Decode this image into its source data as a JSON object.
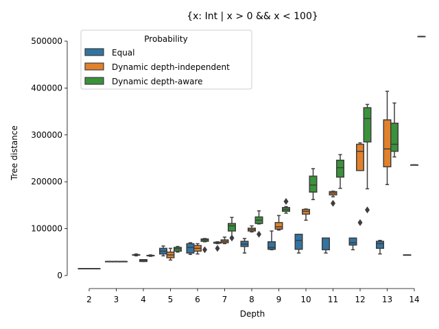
{
  "chart_data": {
    "type": "box",
    "title": "{x: Int | x > 0 && x < 100}",
    "xlabel": "Depth",
    "ylabel": "Tree distance",
    "categories": [
      "2",
      "3",
      "4",
      "5",
      "6",
      "7",
      "8",
      "9",
      "10",
      "11",
      "12",
      "13",
      "14"
    ],
    "ylim": [
      0,
      500000
    ],
    "yticks": [
      0,
      100000,
      200000,
      300000,
      400000,
      500000
    ],
    "ytick_labels": [
      "0",
      "100000",
      "200000",
      "300000",
      "400000",
      "500000"
    ],
    "grid": false,
    "legend": {
      "title": "Probability",
      "placement": "top-left"
    },
    "series": [
      {
        "name": "Equal",
        "color": "#3274a1",
        "boxes": [
          {
            "cat": "2",
            "whislo": 15000,
            "q1": 15000,
            "med": 15000,
            "q3": 15000,
            "whishi": 15000
          },
          {
            "cat": "3",
            "whislo": 30000,
            "q1": 30000,
            "med": 30000,
            "q3": 30000,
            "whishi": 30000
          },
          {
            "cat": "4",
            "whislo": 42000,
            "q1": 43500,
            "med": 44000,
            "q3": 44500,
            "whishi": 46000
          },
          {
            "cat": "5",
            "whislo": 42000,
            "q1": 46000,
            "med": 52000,
            "q3": 58000,
            "whishi": 63000
          },
          {
            "cat": "6",
            "whislo": 45000,
            "q1": 48000,
            "med": 60000,
            "q3": 68000,
            "whishi": 70000
          },
          {
            "cat": "7",
            "whislo": 68000,
            "q1": 69000,
            "med": 70000,
            "q3": 71000,
            "whishi": 72000
          },
          {
            "cat": "8",
            "whislo": 48000,
            "q1": 62000,
            "med": 67000,
            "q3": 73000,
            "whishi": 79000
          },
          {
            "cat": "9",
            "whislo": 55000,
            "q1": 56000,
            "med": 60000,
            "q3": 72000,
            "whishi": 95000
          },
          {
            "cat": "10",
            "whislo": 48000,
            "q1": 56000,
            "med": 75000,
            "q3": 88000,
            "whishi": 88000
          },
          {
            "cat": "11",
            "whislo": 48000,
            "q1": 55000,
            "med": 80000,
            "q3": 80000,
            "whishi": 80000
          },
          {
            "cat": "12",
            "whislo": 55000,
            "q1": 65000,
            "med": 70000,
            "q3": 80000,
            "whishi": 80000
          },
          {
            "cat": "13",
            "whislo": 46000,
            "q1": 58000,
            "med": 68000,
            "q3": 73000,
            "whishi": 75000
          },
          {
            "cat": "14",
            "whislo": 44000,
            "q1": 44000,
            "med": 44000,
            "q3": 44000,
            "whishi": 44000
          }
        ],
        "outliers": []
      },
      {
        "name": "Dynamic depth-independent",
        "color": "#e1812c",
        "boxes": [
          {
            "cat": "2",
            "whislo": 15000,
            "q1": 15000,
            "med": 15000,
            "q3": 15000,
            "whishi": 15000
          },
          {
            "cat": "3",
            "whislo": 30000,
            "q1": 30000,
            "med": 30000,
            "q3": 30000,
            "whishi": 30000
          },
          {
            "cat": "4",
            "whislo": 30000,
            "q1": 30000,
            "med": 32000,
            "q3": 34000,
            "whishi": 34000
          },
          {
            "cat": "5",
            "whislo": 33000,
            "q1": 38000,
            "med": 44000,
            "q3": 50000,
            "whishi": 58000
          },
          {
            "cat": "6",
            "whislo": 46000,
            "q1": 52000,
            "med": 58000,
            "q3": 64000,
            "whishi": 68000
          },
          {
            "cat": "7",
            "whislo": 68000,
            "q1": 70000,
            "med": 73000,
            "q3": 76000,
            "whishi": 82000
          },
          {
            "cat": "8",
            "whislo": 93000,
            "q1": 95000,
            "med": 98000,
            "q3": 101000,
            "whishi": 106000
          },
          {
            "cat": "9",
            "whislo": 97000,
            "q1": 99000,
            "med": 104000,
            "q3": 113000,
            "whishi": 128000
          },
          {
            "cat": "10",
            "whislo": 118000,
            "q1": 131000,
            "med": 137000,
            "q3": 141000,
            "whishi": 142000
          },
          {
            "cat": "11",
            "whislo": 168000,
            "q1": 172000,
            "med": 176000,
            "q3": 179000,
            "whishi": 180000
          },
          {
            "cat": "12",
            "whislo": 224000,
            "q1": 224000,
            "med": 265000,
            "q3": 280000,
            "whishi": 283000
          },
          {
            "cat": "13",
            "whislo": 194000,
            "q1": 232000,
            "med": 270000,
            "q3": 332000,
            "whishi": 393000
          },
          {
            "cat": "14",
            "whislo": 236000,
            "q1": 236000,
            "med": 236000,
            "q3": 236000,
            "whishi": 236000
          }
        ],
        "outliers": [
          {
            "cat": "11",
            "value": 154000
          },
          {
            "cat": "12",
            "value": 113000
          }
        ]
      },
      {
        "name": "Dynamic depth-aware",
        "color": "#3a923a",
        "boxes": [
          {
            "cat": "2",
            "whislo": 15000,
            "q1": 15000,
            "med": 15000,
            "q3": 15000,
            "whishi": 15000
          },
          {
            "cat": "3",
            "whislo": 30000,
            "q1": 30000,
            "med": 30000,
            "q3": 30000,
            "whishi": 30000
          },
          {
            "cat": "4",
            "whislo": 41000,
            "q1": 42000,
            "med": 42500,
            "q3": 43000,
            "whishi": 44000
          },
          {
            "cat": "5",
            "whislo": 50000,
            "q1": 52000,
            "med": 57000,
            "q3": 60000,
            "whishi": 62000
          },
          {
            "cat": "6",
            "whislo": 72000,
            "q1": 73000,
            "med": 76000,
            "q3": 78000,
            "whishi": 79000
          },
          {
            "cat": "7",
            "whislo": 82000,
            "q1": 95000,
            "med": 106000,
            "q3": 111000,
            "whishi": 124000
          },
          {
            "cat": "8",
            "whislo": 110000,
            "q1": 111000,
            "med": 118000,
            "q3": 125000,
            "whishi": 138000
          },
          {
            "cat": "9",
            "whislo": 133000,
            "q1": 137000,
            "med": 141000,
            "q3": 145000,
            "whishi": 147000
          },
          {
            "cat": "10",
            "whislo": 162000,
            "q1": 178000,
            "med": 193000,
            "q3": 212000,
            "whishi": 228000
          },
          {
            "cat": "11",
            "whislo": 186000,
            "q1": 210000,
            "med": 230000,
            "q3": 246000,
            "whishi": 258000
          },
          {
            "cat": "12",
            "whislo": 185000,
            "q1": 285000,
            "med": 335000,
            "q3": 358000,
            "whishi": 365000
          },
          {
            "cat": "13",
            "whislo": 253000,
            "q1": 265000,
            "med": 280000,
            "q3": 325000,
            "whishi": 368000
          },
          {
            "cat": "14",
            "whislo": 510000,
            "q1": 510000,
            "med": 510000,
            "q3": 510000,
            "whishi": 510000
          }
        ],
        "outliers": [
          {
            "cat": "6",
            "value": 55000
          },
          {
            "cat": "7",
            "value": 80000
          },
          {
            "cat": "8",
            "value": 88000
          },
          {
            "cat": "9",
            "value": 158000
          },
          {
            "cat": "12",
            "value": 140000
          }
        ]
      }
    ],
    "extra_outliers": [
      {
        "series": "Equal",
        "cat": "7",
        "value": 58000
      }
    ]
  }
}
